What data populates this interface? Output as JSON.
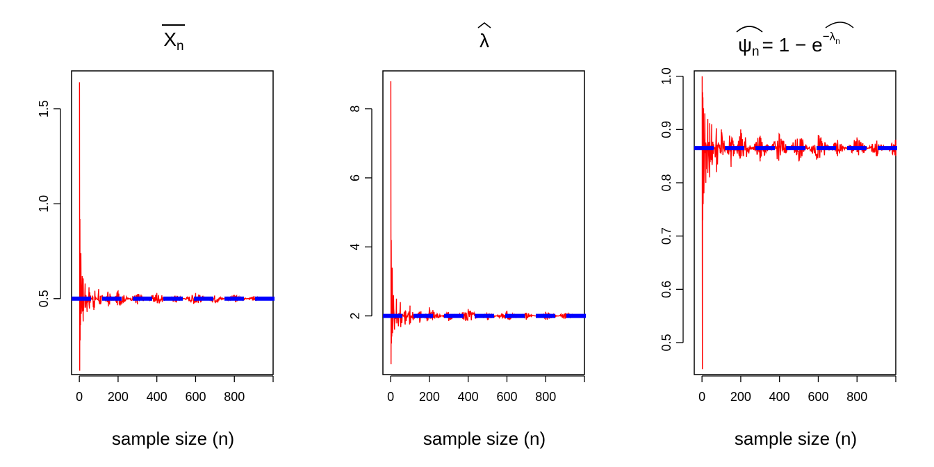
{
  "chart_data": [
    {
      "type": "line",
      "title": "X̄n",
      "title_main": "X",
      "title_sub": "n",
      "xlabel": "sample size (n)",
      "ylabel": "",
      "xlim": [
        -40,
        1000
      ],
      "ylim": [
        0.1,
        1.7
      ],
      "x_ticks": [
        0,
        200,
        400,
        600,
        800
      ],
      "x_tick_labels": [
        "0",
        "200",
        "400",
        "600",
        "800"
      ],
      "y_ticks": [
        0.5,
        1.0,
        1.5
      ],
      "y_tick_labels": [
        "0.5",
        "1.0",
        "1.5"
      ],
      "grid": false,
      "colors": {
        "estimate": "#ff0000",
        "true_value": "#0000ff"
      },
      "reference_line": {
        "y": 0.5,
        "style": "dashed"
      },
      "series": [
        {
          "x": [
            1,
            2,
            3,
            4,
            5,
            6,
            8,
            10,
            15,
            20,
            30,
            40,
            50,
            75,
            100,
            150,
            200,
            300,
            400,
            500,
            600,
            700,
            800,
            900,
            1000
          ],
          "values": [
            1.64,
            0.12,
            0.92,
            0.28,
            0.66,
            0.36,
            0.74,
            0.42,
            0.62,
            0.38,
            0.58,
            0.43,
            0.56,
            0.44,
            0.55,
            0.46,
            0.54,
            0.47,
            0.53,
            0.48,
            0.53,
            0.48,
            0.52,
            0.49,
            0.51
          ]
        }
      ]
    },
    {
      "type": "line",
      "title": "λ̂",
      "title_main": "λ",
      "xlabel": "sample size (n)",
      "ylabel": "",
      "xlim": [
        -40,
        1000
      ],
      "ylim": [
        0.3,
        9.1
      ],
      "x_ticks": [
        0,
        200,
        400,
        600,
        800
      ],
      "x_tick_labels": [
        "0",
        "200",
        "400",
        "600",
        "800"
      ],
      "y_ticks": [
        2,
        4,
        6,
        8
      ],
      "y_tick_labels": [
        "2",
        "4",
        "6",
        "8"
      ],
      "grid": false,
      "colors": {
        "estimate": "#ff0000",
        "true_value": "#0000ff"
      },
      "reference_line": {
        "y": 2,
        "style": "dashed"
      },
      "series": [
        {
          "x": [
            1,
            2,
            3,
            4,
            5,
            6,
            8,
            10,
            15,
            20,
            30,
            40,
            50,
            75,
            100,
            150,
            200,
            300,
            400,
            500,
            600,
            700,
            800,
            900,
            1000
          ],
          "values": [
            8.8,
            0.6,
            4.2,
            1.2,
            3.0,
            1.4,
            3.4,
            1.5,
            2.6,
            1.6,
            2.5,
            1.7,
            2.4,
            1.75,
            2.3,
            1.8,
            2.25,
            1.85,
            2.2,
            1.88,
            2.15,
            1.9,
            2.12,
            1.92,
            2.05
          ]
        }
      ]
    },
    {
      "type": "line",
      "title": "ψ̂n = 1 − e^(−λ̂n)",
      "title_psi": "ψ",
      "title_sub": "n",
      "title_rhs": "= 1 − e",
      "title_exp": "−λ",
      "title_exp_sub": "n",
      "xlabel": "sample size (n)",
      "ylabel": "",
      "xlim": [
        -40,
        1000
      ],
      "ylim": [
        0.44,
        1.01
      ],
      "x_ticks": [
        0,
        200,
        400,
        600,
        800
      ],
      "x_tick_labels": [
        "0",
        "200",
        "400",
        "600",
        "800"
      ],
      "y_ticks": [
        0.5,
        0.6,
        0.7,
        0.8,
        0.9,
        1.0
      ],
      "y_tick_labels": [
        "0.5",
        "0.6",
        "0.7",
        "0.8",
        "0.9",
        "1.0"
      ],
      "grid": false,
      "colors": {
        "estimate": "#ff0000",
        "true_value": "#0000ff"
      },
      "reference_line": {
        "y": 0.865,
        "style": "dashed"
      },
      "series": [
        {
          "x": [
            1,
            2,
            3,
            4,
            5,
            6,
            8,
            10,
            15,
            20,
            30,
            40,
            50,
            75,
            100,
            150,
            200,
            300,
            400,
            500,
            600,
            700,
            800,
            900,
            1000
          ],
          "values": [
            1.0,
            0.45,
            0.97,
            0.73,
            0.96,
            0.76,
            0.94,
            0.78,
            0.93,
            0.8,
            0.92,
            0.81,
            0.91,
            0.82,
            0.9,
            0.83,
            0.9,
            0.84,
            0.89,
            0.84,
            0.89,
            0.85,
            0.885,
            0.85,
            0.88
          ]
        }
      ]
    }
  ]
}
